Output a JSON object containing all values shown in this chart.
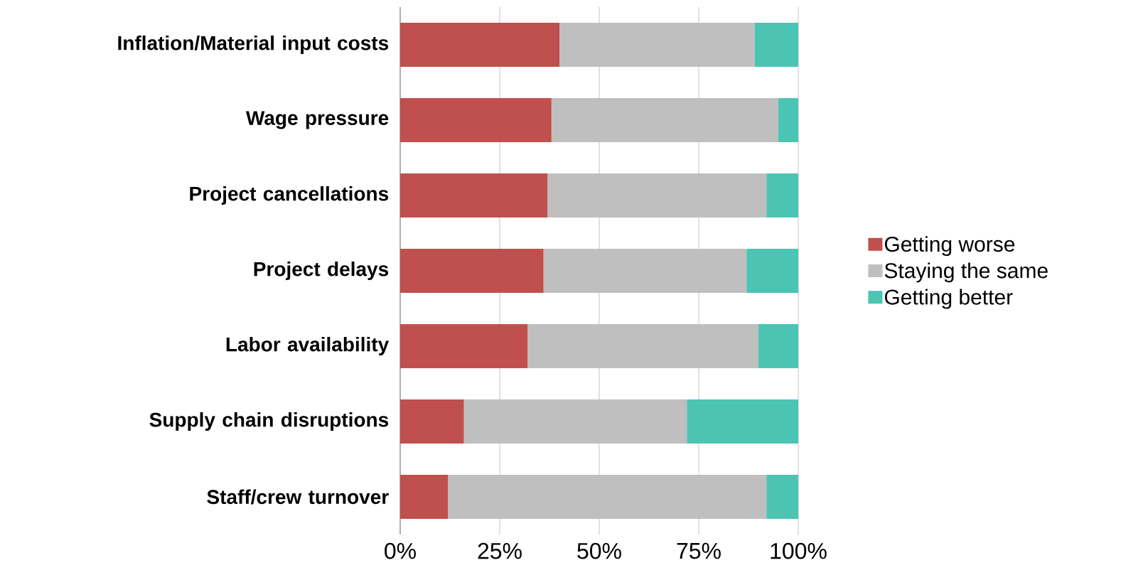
{
  "chart_data": {
    "type": "bar",
    "orientation": "horizontal",
    "stacked": true,
    "categories": [
      "Inflation/Material input costs",
      "Wage pressure",
      "Project cancellations",
      "Project delays",
      "Labor availability",
      "Supply chain disruptions",
      "Staff/crew turnover"
    ],
    "series": [
      {
        "name": "Getting worse",
        "color": "#c0504d",
        "values": [
          40,
          38,
          37,
          36,
          32,
          16,
          12
        ]
      },
      {
        "name": "Staying the same",
        "color": "#bfbfbf",
        "values": [
          49,
          57,
          55,
          51,
          58,
          56,
          80
        ]
      },
      {
        "name": "Getting better",
        "color": "#4bc4b4",
        "values": [
          11,
          5,
          8,
          13,
          10,
          28,
          8
        ]
      }
    ],
    "xlim": [
      0,
      100
    ],
    "xticks": [
      {
        "value": 0,
        "label": "0%"
      },
      {
        "value": 25,
        "label": "25%"
      },
      {
        "value": 50,
        "label": "50%"
      },
      {
        "value": 75,
        "label": "75%"
      },
      {
        "value": 100,
        "label": "100%"
      }
    ],
    "grid": "x",
    "legend": "right"
  }
}
